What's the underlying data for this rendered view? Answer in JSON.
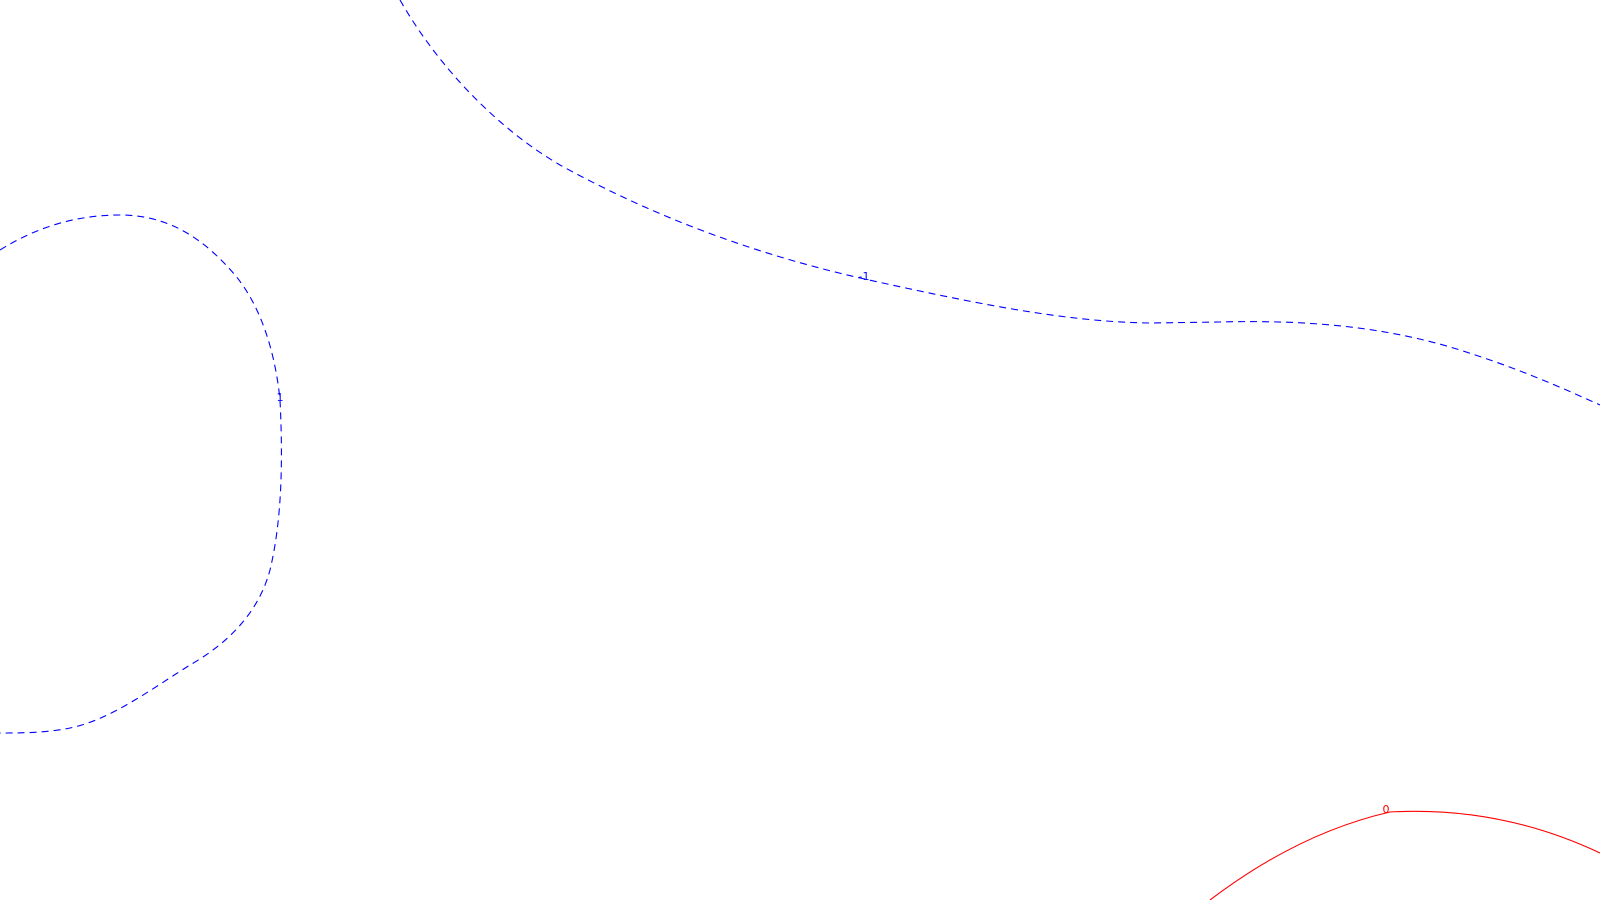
{
  "chart_data": {
    "type": "contour",
    "title": "",
    "xlabel": "",
    "ylabel": "",
    "grid": false,
    "legend": "none",
    "contours": [
      {
        "level": -1,
        "label": "-1",
        "color": "#0000ff",
        "style": "dashed",
        "name": "contour-level-minus-1-upper"
      },
      {
        "level": 1,
        "label": "1",
        "color": "#0000ff",
        "style": "dashed",
        "name": "contour-level-1-left"
      },
      {
        "level": 0,
        "label": "0",
        "color": "#ff0000",
        "style": "solid",
        "name": "contour-level-0-lower-right"
      }
    ]
  }
}
